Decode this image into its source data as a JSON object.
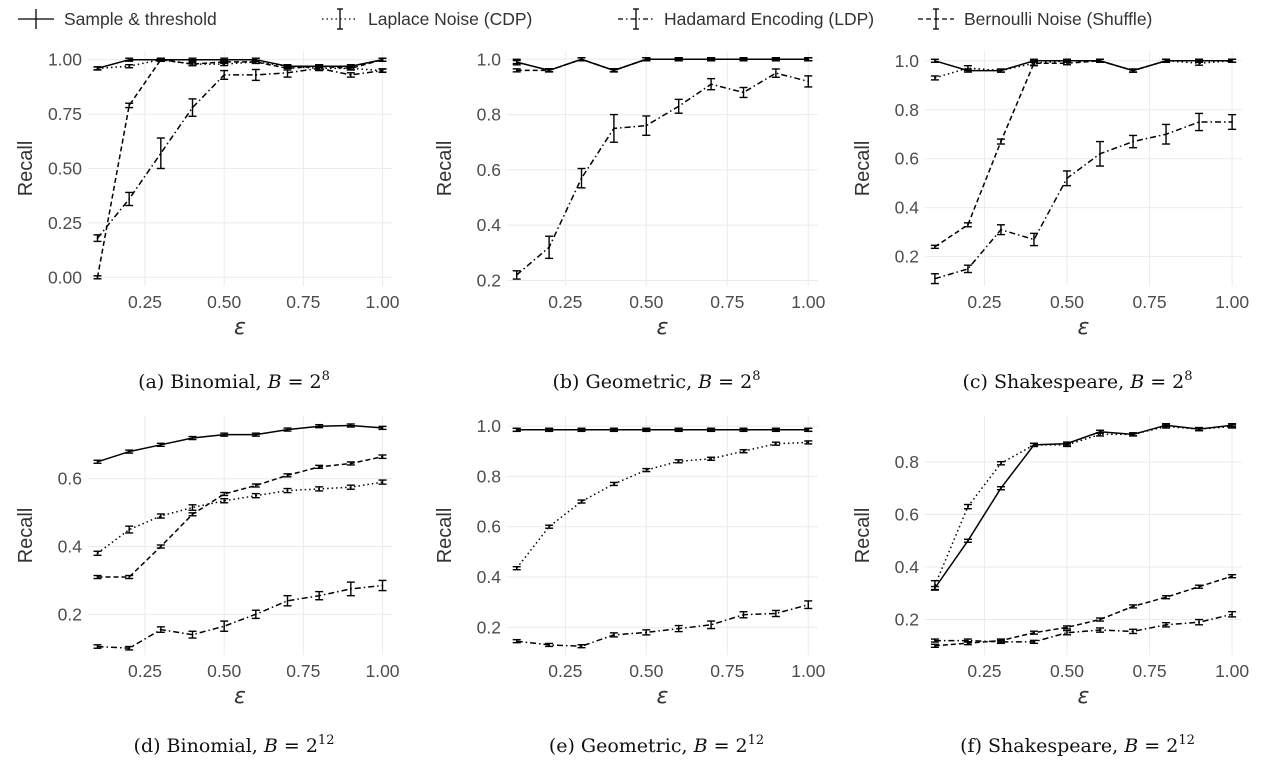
{
  "legend": [
    {
      "label": "Sample & threshold",
      "dash": ""
    },
    {
      "label": "Laplace Noise (CDP)",
      "dash": "1.5,3"
    },
    {
      "label": "Hadamard Encoding (LDP)",
      "dash": "5,3,1.5,3"
    },
    {
      "label": "Bernoulli Noise (Shuffle)",
      "dash": "5,3"
    }
  ],
  "chart_data": [
    {
      "type": "line",
      "caption": "(a) Binomial, B = 2^8",
      "caption_parts": {
        "prefix": "(a) Binomial, ",
        "var": "B",
        "eq": " = 2",
        "exp": "8"
      },
      "xlabel": "ε",
      "ylabel": "Recall",
      "xlim": [
        0.07,
        1.03
      ],
      "ylim": [
        -0.04,
        1.04
      ],
      "xticks": [
        0.25,
        0.5,
        0.75,
        1.0
      ],
      "xtick_labels": [
        "0.25",
        "0.50",
        "0.75",
        "1.00"
      ],
      "yticks": [
        0.0,
        0.25,
        0.5,
        0.75,
        1.0
      ],
      "ytick_labels": [
        "0.00",
        "0.25",
        "0.50",
        "0.75",
        "1.00"
      ],
      "x": [
        0.1,
        0.2,
        0.3,
        0.4,
        0.5,
        0.6,
        0.7,
        0.8,
        0.9,
        1.0
      ],
      "series": [
        {
          "name": "Sample & threshold",
          "values": [
            0.96,
            1.0,
            1.0,
            1.0,
            1.0,
            1.0,
            0.97,
            0.97,
            0.97,
            1.0
          ],
          "err": [
            0,
            0,
            0,
            0,
            0,
            0,
            0,
            0,
            0,
            0
          ]
        },
        {
          "name": "Laplace Noise (CDP)",
          "values": [
            0.96,
            0.97,
            1.0,
            0.98,
            0.98,
            0.99,
            0.97,
            0.96,
            0.96,
            0.95
          ],
          "err": [
            0.007,
            0.007,
            0.005,
            0.007,
            0.007,
            0.005,
            0.007,
            0.007,
            0.007,
            0.007
          ]
        },
        {
          "name": "Hadamard Encoding (LDP)",
          "values": [
            0.18,
            0.36,
            0.57,
            0.78,
            0.93,
            0.93,
            0.94,
            0.96,
            0.93,
            0.95
          ],
          "err": [
            0.015,
            0.03,
            0.07,
            0.04,
            0.02,
            0.025,
            0.02,
            0.01,
            0.01,
            0.008
          ]
        },
        {
          "name": "Bernoulli Noise (Shuffle)",
          "values": [
            0.0,
            0.79,
            1.0,
            0.98,
            0.99,
            0.99,
            0.96,
            0.97,
            0.96,
            1.0
          ],
          "err": [
            0.005,
            0.01,
            0.005,
            0.005,
            0.005,
            0.005,
            0.007,
            0.007,
            0.007,
            0.005
          ]
        }
      ]
    },
    {
      "type": "line",
      "caption": "(b) Geometric, B = 2^8",
      "caption_parts": {
        "prefix": "(b) Geometric, ",
        "var": "B",
        "eq": " = 2",
        "exp": "8"
      },
      "xlabel": "ε",
      "ylabel": "Recall",
      "xlim": [
        0.07,
        1.03
      ],
      "ylim": [
        0.18,
        1.03
      ],
      "xticks": [
        0.25,
        0.5,
        0.75,
        1.0
      ],
      "xtick_labels": [
        "0.25",
        "0.50",
        "0.75",
        "1.00"
      ],
      "yticks": [
        0.2,
        0.4,
        0.6,
        0.8,
        1.0
      ],
      "ytick_labels": [
        "0.2",
        "0.4",
        "0.6",
        "0.8",
        "1.0"
      ],
      "x": [
        0.1,
        0.2,
        0.3,
        0.4,
        0.5,
        0.6,
        0.7,
        0.8,
        0.9,
        1.0
      ],
      "series": [
        {
          "name": "Sample & threshold",
          "values": [
            0.99,
            0.96,
            1.0,
            0.96,
            1.0,
            1.0,
            1.0,
            1.0,
            1.0,
            1.0
          ],
          "err": [
            0,
            0,
            0,
            0,
            0,
            0,
            0,
            0,
            0,
            0
          ]
        },
        {
          "name": "Laplace Noise (CDP)",
          "values": [
            0.99,
            0.96,
            1.0,
            0.96,
            1.0,
            1.0,
            1.0,
            1.0,
            1.0,
            1.0
          ],
          "err": [
            0.01,
            0.005,
            0.003,
            0.004,
            0.003,
            0.003,
            0.003,
            0.003,
            0.003,
            0.003
          ]
        },
        {
          "name": "Hadamard Encoding (LDP)",
          "values": [
            0.22,
            0.32,
            0.57,
            0.75,
            0.76,
            0.83,
            0.91,
            0.88,
            0.95,
            0.92
          ],
          "err": [
            0.015,
            0.04,
            0.035,
            0.05,
            0.035,
            0.025,
            0.02,
            0.018,
            0.015,
            0.02
          ]
        },
        {
          "name": "Bernoulli Noise (Shuffle)",
          "values": [
            0.96,
            0.96,
            1.0,
            0.96,
            1.0,
            1.0,
            1.0,
            1.0,
            1.0,
            1.0
          ],
          "err": [
            0,
            0,
            0,
            0,
            0,
            0,
            0,
            0,
            0,
            0.005
          ]
        }
      ]
    },
    {
      "type": "line",
      "caption": "(c) Shakespeare, B = 2^8",
      "caption_parts": {
        "prefix": "(c) Shakespeare, ",
        "var": "B",
        "eq": " = 2",
        "exp": "8"
      },
      "xlabel": "ε",
      "ylabel": "Recall",
      "xlim": [
        0.07,
        1.03
      ],
      "ylim": [
        0.08,
        1.04
      ],
      "xticks": [
        0.25,
        0.5,
        0.75,
        1.0
      ],
      "xtick_labels": [
        "0.25",
        "0.50",
        "0.75",
        "1.00"
      ],
      "yticks": [
        0.2,
        0.4,
        0.6,
        0.8,
        1.0
      ],
      "ytick_labels": [
        "0.2",
        "0.4",
        "0.6",
        "0.8",
        "1.0"
      ],
      "x": [
        0.1,
        0.2,
        0.3,
        0.4,
        0.5,
        0.6,
        0.7,
        0.8,
        0.9,
        1.0
      ],
      "series": [
        {
          "name": "Sample & threshold",
          "values": [
            1.0,
            0.96,
            0.96,
            1.0,
            1.0,
            1.0,
            0.96,
            1.0,
            1.0,
            1.0
          ],
          "err": [
            0,
            0,
            0,
            0,
            0,
            0,
            0,
            0,
            0,
            0
          ]
        },
        {
          "name": "Laplace Noise (CDP)",
          "values": [
            0.93,
            0.97,
            0.96,
            0.99,
            1.0,
            1.0,
            0.96,
            1.0,
            0.99,
            1.0
          ],
          "err": [
            0.008,
            0.01,
            0.005,
            0.01,
            0.005,
            0.005,
            0.005,
            0.005,
            0.008,
            0.005
          ]
        },
        {
          "name": "Hadamard Encoding (LDP)",
          "values": [
            0.11,
            0.15,
            0.31,
            0.27,
            0.52,
            0.62,
            0.67,
            0.7,
            0.75,
            0.75
          ],
          "err": [
            0.02,
            0.015,
            0.02,
            0.025,
            0.03,
            0.05,
            0.025,
            0.04,
            0.035,
            0.03
          ]
        },
        {
          "name": "Bernoulli Noise (Shuffle)",
          "values": [
            0.24,
            0.33,
            0.67,
            0.99,
            0.99,
            1.0,
            0.96,
            1.0,
            1.0,
            1.0
          ],
          "err": [
            0.005,
            0.008,
            0.01,
            0.008,
            0.005,
            0.005,
            0.005,
            0.005,
            0.005,
            0.005
          ]
        }
      ]
    },
    {
      "type": "line",
      "caption": "(d) Binomial, B = 2^12",
      "caption_parts": {
        "prefix": "(d) Binomial, ",
        "var": "B",
        "eq": " = 2",
        "exp": "12"
      },
      "xlabel": "ε",
      "ylabel": "Recall",
      "xlim": [
        0.07,
        1.03
      ],
      "ylim": [
        0.08,
        0.785
      ],
      "xticks": [
        0.25,
        0.5,
        0.75,
        1.0
      ],
      "xtick_labels": [
        "0.25",
        "0.50",
        "0.75",
        "1.00"
      ],
      "yticks": [
        0.2,
        0.4,
        0.6
      ],
      "ytick_labels": [
        "0.2",
        "0.4",
        "0.6"
      ],
      "x": [
        0.1,
        0.2,
        0.3,
        0.4,
        0.5,
        0.6,
        0.7,
        0.8,
        0.9,
        1.0
      ],
      "series": [
        {
          "name": "Sample & threshold",
          "values": [
            0.65,
            0.68,
            0.7,
            0.72,
            0.73,
            0.73,
            0.745,
            0.755,
            0.757,
            0.75
          ],
          "err": [
            0,
            0,
            0,
            0,
            0,
            0,
            0,
            0,
            0,
            0
          ]
        },
        {
          "name": "Laplace Noise (CDP)",
          "values": [
            0.38,
            0.45,
            0.49,
            0.515,
            0.535,
            0.55,
            0.565,
            0.57,
            0.575,
            0.59
          ],
          "err": [
            0.006,
            0.01,
            0.006,
            0.008,
            0.006,
            0.006,
            0.006,
            0.006,
            0.006,
            0.006
          ]
        },
        {
          "name": "Hadamard Encoding (LDP)",
          "values": [
            0.105,
            0.1,
            0.155,
            0.14,
            0.165,
            0.2,
            0.24,
            0.255,
            0.275,
            0.285
          ],
          "err": [
            0.005,
            0.005,
            0.008,
            0.01,
            0.015,
            0.012,
            0.015,
            0.012,
            0.02,
            0.015
          ]
        },
        {
          "name": "Bernoulli Noise (Shuffle)",
          "values": [
            0.31,
            0.31,
            0.4,
            0.495,
            0.555,
            0.58,
            0.61,
            0.635,
            0.645,
            0.665
          ],
          "err": [
            0,
            0,
            0,
            0,
            0,
            0,
            0,
            0,
            0,
            0.005
          ]
        }
      ]
    },
    {
      "type": "line",
      "caption": "(e) Geometric, B = 2^12",
      "caption_parts": {
        "prefix": "(e) Geometric, ",
        "var": "B",
        "eq": " = 2",
        "exp": "12"
      },
      "xlabel": "ε",
      "ylabel": "Recall",
      "xlim": [
        0.07,
        1.03
      ],
      "ylim": [
        0.09,
        1.04
      ],
      "xticks": [
        0.25,
        0.5,
        0.75,
        1.0
      ],
      "xtick_labels": [
        "0.25",
        "0.50",
        "0.75",
        "1.00"
      ],
      "yticks": [
        0.2,
        0.4,
        0.6,
        0.8,
        1.0
      ],
      "ytick_labels": [
        "0.2",
        "0.4",
        "0.6",
        "0.8",
        "1.0"
      ],
      "x": [
        0.1,
        0.2,
        0.3,
        0.4,
        0.5,
        0.6,
        0.7,
        0.8,
        0.9,
        1.0
      ],
      "series": [
        {
          "name": "Sample & threshold",
          "values": [
            0.985,
            0.985,
            0.985,
            0.985,
            0.985,
            0.985,
            0.985,
            0.985,
            0.985,
            0.985
          ],
          "err": [
            0,
            0,
            0,
            0,
            0,
            0,
            0,
            0,
            0,
            0
          ]
        },
        {
          "name": "Laplace Noise (CDP)",
          "values": [
            0.435,
            0.6,
            0.7,
            0.77,
            0.825,
            0.86,
            0.87,
            0.9,
            0.93,
            0.935
          ],
          "err": [
            0.005,
            0.005,
            0.005,
            0.004,
            0.004,
            0.004,
            0.004,
            0.004,
            0.004,
            0.004
          ]
        },
        {
          "name": "Hadamard Encoding (LDP)",
          "values": [
            0.145,
            0.13,
            0.125,
            0.17,
            0.18,
            0.195,
            0.21,
            0.25,
            0.255,
            0.29
          ],
          "err": [
            0.006,
            0.005,
            0.005,
            0.008,
            0.01,
            0.012,
            0.015,
            0.012,
            0.012,
            0.015
          ]
        },
        {
          "name": "Bernoulli Noise (Shuffle)",
          "values": [
            0.985,
            0.985,
            0.985,
            0.985,
            0.985,
            0.985,
            0.985,
            0.985,
            0.985,
            0.985
          ],
          "err": [
            0,
            0,
            0,
            0,
            0,
            0,
            0,
            0,
            0,
            0
          ]
        }
      ]
    },
    {
      "type": "line",
      "caption": "(f) Shakespeare, B = 2^12",
      "caption_parts": {
        "prefix": "(f) Shakespeare, ",
        "var": "B",
        "eq": " = 2",
        "exp": "12"
      },
      "xlabel": "ε",
      "ylabel": "Recall",
      "xlim": [
        0.07,
        1.03
      ],
      "ylim": [
        0.065,
        0.975
      ],
      "xticks": [
        0.25,
        0.5,
        0.75,
        1.0
      ],
      "xtick_labels": [
        "0.25",
        "0.50",
        "0.75",
        "1.00"
      ],
      "yticks": [
        0.2,
        0.4,
        0.6,
        0.8
      ],
      "ytick_labels": [
        "0.2",
        "0.4",
        "0.6",
        "0.8"
      ],
      "x": [
        0.1,
        0.2,
        0.3,
        0.4,
        0.5,
        0.6,
        0.7,
        0.8,
        0.9,
        1.0
      ],
      "series": [
        {
          "name": "Sample & threshold",
          "values": [
            0.32,
            0.5,
            0.7,
            0.865,
            0.87,
            0.915,
            0.905,
            0.94,
            0.925,
            0.94
          ],
          "err": [
            0,
            0,
            0,
            0,
            0,
            0,
            0,
            0,
            0,
            0
          ]
        },
        {
          "name": "Laplace Noise (CDP)",
          "values": [
            0.33,
            0.63,
            0.795,
            0.865,
            0.865,
            0.905,
            0.905,
            0.935,
            0.925,
            0.935
          ],
          "err": [
            0.018,
            0.008,
            0.006,
            0.006,
            0.006,
            0.006,
            0.005,
            0.005,
            0.005,
            0.005
          ]
        },
        {
          "name": "Hadamard Encoding (LDP)",
          "values": [
            0.12,
            0.12,
            0.115,
            0.115,
            0.15,
            0.16,
            0.155,
            0.18,
            0.19,
            0.22
          ],
          "err": [
            0.005,
            0.005,
            0.005,
            0.005,
            0.008,
            0.008,
            0.008,
            0.008,
            0.01,
            0.01
          ]
        },
        {
          "name": "Bernoulli Noise (Shuffle)",
          "values": [
            0.1,
            0.11,
            0.12,
            0.15,
            0.17,
            0.2,
            0.25,
            0.285,
            0.325,
            0.365
          ],
          "err": [
            0,
            0,
            0,
            0,
            0,
            0,
            0,
            0,
            0,
            0.005
          ]
        }
      ]
    }
  ]
}
